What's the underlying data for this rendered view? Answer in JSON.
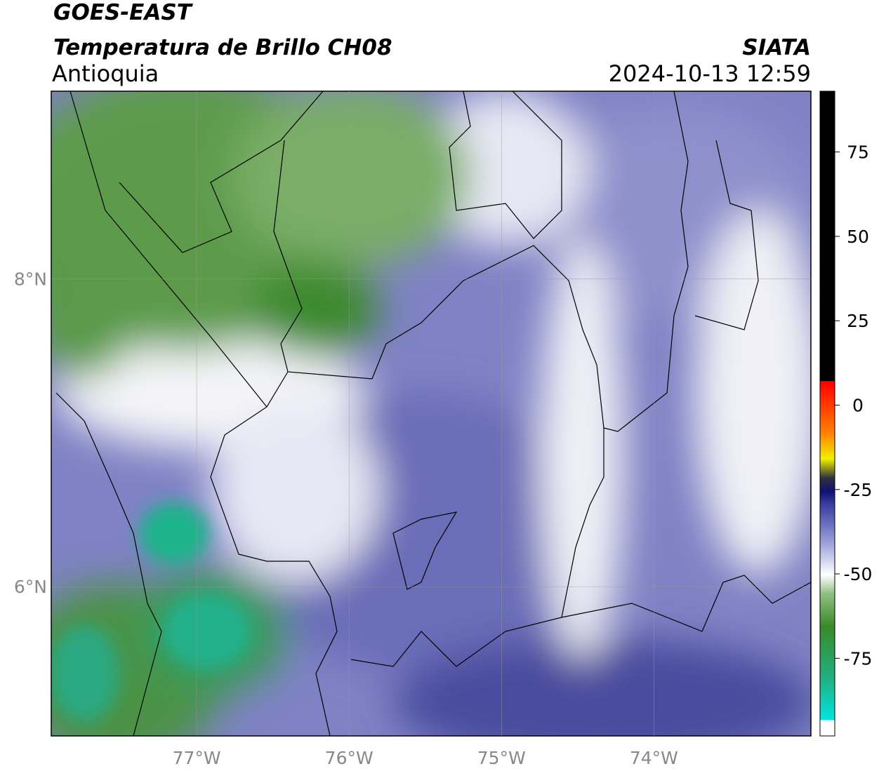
{
  "map": {
    "title": "GOES-EAST",
    "subtitle": "Temperatura de Brillo CH08",
    "region": "Antioquia",
    "source": "SIATA",
    "datetime": "2024-10-13 12:59",
    "xlim": [
      -77.954,
      -72.97
    ],
    "ylim": [
      5.03,
      9.22
    ],
    "xticks": [
      {
        "value": -77,
        "label": "77°W"
      },
      {
        "value": -76,
        "label": "76°W"
      },
      {
        "value": -75,
        "label": "75°W"
      },
      {
        "value": -74,
        "label": "74°W"
      }
    ],
    "yticks": [
      {
        "value": 8,
        "label": "8°N"
      },
      {
        "value": 6,
        "label": "6°N"
      }
    ],
    "colorbar": {
      "lim": [
        -98,
        93
      ],
      "ticks": [
        75,
        50,
        25,
        0,
        -25,
        -50,
        -75
      ]
    }
  }
}
